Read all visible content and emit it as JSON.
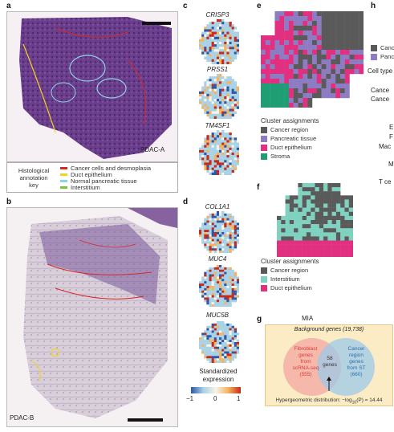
{
  "panels": {
    "a": {
      "letter": "a",
      "sample": "PDAC-A"
    },
    "b": {
      "letter": "b",
      "sample": "PDAC-B"
    },
    "c": {
      "letter": "c",
      "genes": [
        "CRISP3",
        "PRSS1",
        "TM4SF1"
      ]
    },
    "d": {
      "letter": "d",
      "genes": [
        "COL1A1",
        "MUC4",
        "MUC5B"
      ]
    },
    "e": {
      "letter": "e",
      "legend_title": "Cluster assignments",
      "items": [
        {
          "label": "Cancer region",
          "color": "#5a5a5a"
        },
        {
          "label": "Pancreatic tissue",
          "color": "#8e7cc3"
        },
        {
          "label": "Duct epithelium",
          "color": "#e0307f"
        },
        {
          "label": "Stroma",
          "color": "#1f9e74"
        }
      ]
    },
    "f": {
      "letter": "f",
      "legend_title": "Cluster assignments",
      "items": [
        {
          "label": "Cancer region",
          "color": "#5a5a5a"
        },
        {
          "label": "Interstitium",
          "color": "#7fd1c0"
        },
        {
          "label": "Duct epithelium",
          "color": "#e0307f"
        }
      ]
    },
    "g": {
      "letter": "g",
      "title": "MIA",
      "background": "Background genes (19,738)",
      "left_circle": [
        "Fibroblast",
        "genes",
        "from",
        "scRNA-seq",
        "(555)"
      ],
      "right_circle": [
        "Cancer",
        "region",
        "genes",
        "from ST",
        "(660)"
      ],
      "overlap": [
        "58",
        "genes"
      ],
      "hypergeom_prefix": "Hypergeometric distribution: −log",
      "hypergeom_sub": "10",
      "hypergeom_suffix": "(P) = 14.44"
    },
    "h": {
      "letter": "h",
      "legend_items": [
        {
          "label": "Canc",
          "color": "#5a5a5a"
        },
        {
          "label": "Panc",
          "color": "#8e7cc3"
        }
      ],
      "axis_fragments": [
        "Cell type",
        "Cance",
        "Cance",
        "E",
        "F",
        "Mac",
        "M",
        "T ce"
      ]
    }
  },
  "histology_key": {
    "title_lines": [
      "Histological",
      "annotation",
      "key"
    ],
    "items": [
      {
        "label": "Cancer cells and desmoplasia",
        "color": "#d62728"
      },
      {
        "label": "Duct epithelium",
        "color": "#f2d31b"
      },
      {
        "label": "Normal pancreatic tissue",
        "color": "#8fd3e6"
      },
      {
        "label": "Interstitium",
        "color": "#7cc241"
      }
    ]
  },
  "expression_legend": {
    "title_lines": [
      "Standardized",
      "expression"
    ],
    "ticks": [
      "−1",
      "0",
      "1"
    ],
    "colors": [
      "#2c58a8",
      "#a9d2e6",
      "#f7f4e8",
      "#f6b25c",
      "#c62a1c"
    ]
  }
}
